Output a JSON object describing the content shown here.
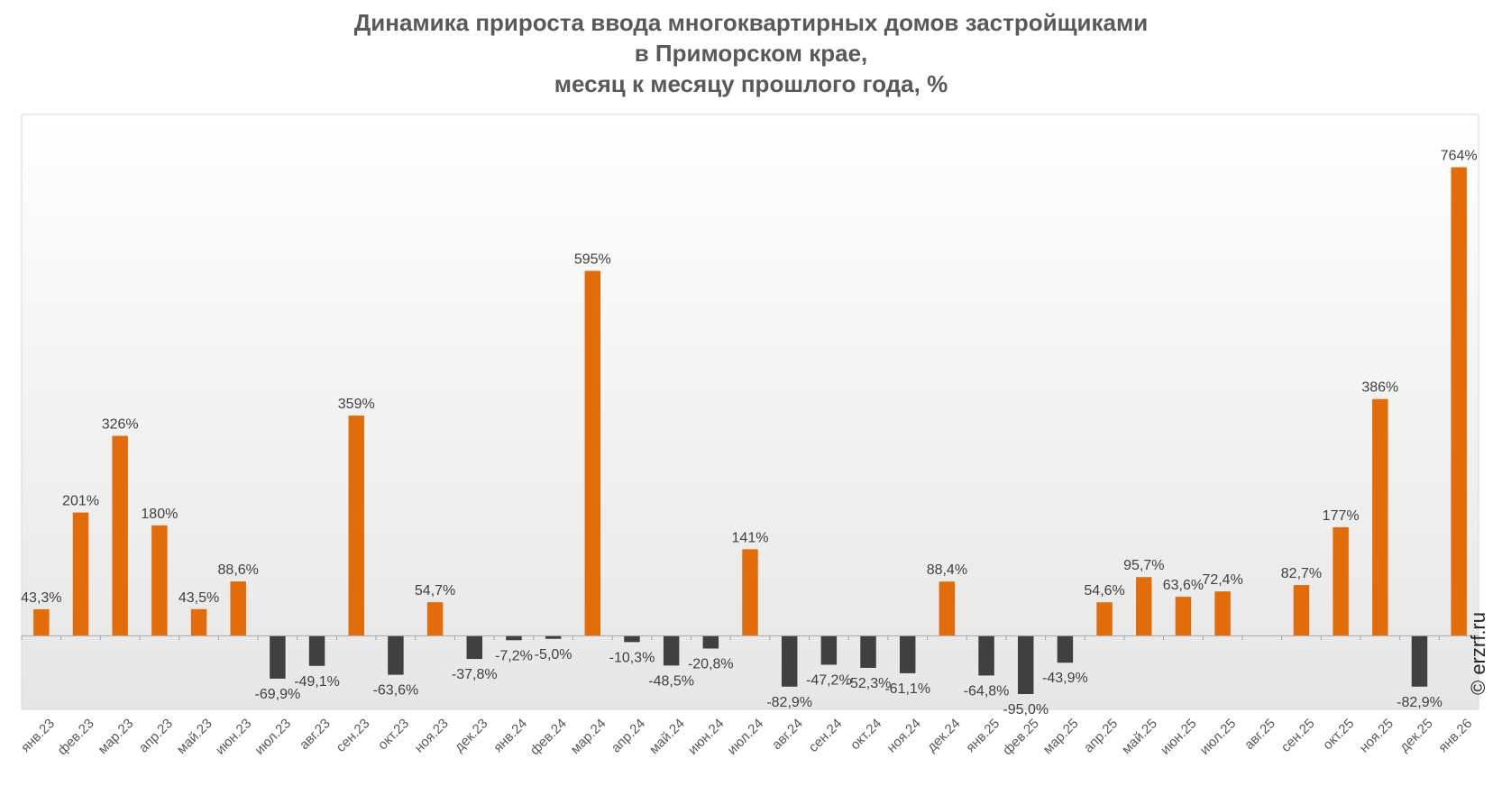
{
  "title_lines": [
    "Динамика прироста ввода многоквартирных домов застройщиками",
    "в Приморском крае,",
    "месяц к месяцу прошлого года, %"
  ],
  "watermark": "© erzrf.ru",
  "colors": {
    "positive": "#E36C0A",
    "negative": "#404040",
    "label": "#404040",
    "axis_label": "#595959"
  },
  "chart_data": {
    "type": "bar",
    "title": "Динамика прироста ввода многоквартирных домов застройщиками в Приморском крае, месяц к месяцу прошлого года, %",
    "xlabel": "",
    "ylabel": "",
    "grid": false,
    "legend": "none",
    "ylim": [
      -120,
      850
    ],
    "categories": [
      "янв.23",
      "фев.23",
      "мар.23",
      "апр.23",
      "май.23",
      "июн.23",
      "июл.23",
      "авг.23",
      "сен.23",
      "окт.23",
      "ноя.23",
      "дек.23",
      "янв.24",
      "фев.24",
      "мар.24",
      "апр.24",
      "май.24",
      "июн.24",
      "июл.24",
      "авг.24",
      "сен.24",
      "окт.24",
      "ноя.24",
      "дек.24",
      "янв.25",
      "фев.25",
      "мар.25",
      "апр.25",
      "май.25",
      "июн.25",
      "июл.25",
      "авг.25",
      "сен.25",
      "окт.25",
      "ноя.25",
      "дек.25",
      "янв.26"
    ],
    "values": [
      43.3,
      201,
      326,
      180,
      43.5,
      88.6,
      -69.9,
      -49.1,
      359,
      -63.6,
      54.7,
      -37.8,
      -7.2,
      -5.0,
      595,
      -10.3,
      -48.5,
      -20.8,
      141,
      -82.9,
      -47.2,
      -52.3,
      -61.1,
      88.4,
      -64.8,
      -95.0,
      -43.9,
      54.6,
      95.7,
      63.6,
      72.4,
      null,
      82.7,
      177,
      386,
      -82.9,
      764
    ],
    "labels": [
      "43,3%",
      "201%",
      "326%",
      "180%",
      "43,5%",
      "88,6%",
      "-69,9%",
      "-49,1%",
      "359%",
      "-63,6%",
      "54,7%",
      "-37,8%",
      "-7,2%",
      "-5,0%",
      "595%",
      "-10,3%",
      "-48,5%",
      "-20,8%",
      "141%",
      "-82,9%",
      "-47,2%",
      "-52,3%",
      "-61,1%",
      "88,4%",
      "-64,8%",
      "-95,0%",
      "-43,9%",
      "54,6%",
      "95,7%",
      "63,6%",
      "72,4%",
      "",
      "82,7%",
      "177%",
      "386%",
      "-82,9%",
      "764%"
    ]
  }
}
